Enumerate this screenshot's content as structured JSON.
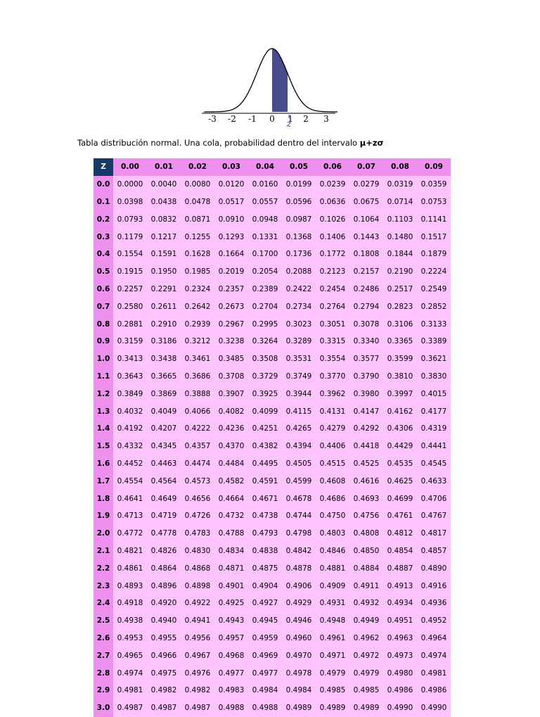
{
  "figure": {
    "ticks": [
      "-3",
      "-2",
      "-1",
      "0",
      "1",
      "2",
      "3"
    ],
    "z_marker": "z",
    "colors": {
      "curve": "#000000",
      "shaded_area": "#4a4b8c"
    }
  },
  "caption": {
    "text": "Tabla distribución normal. Una cola, probabilidad dentro del intervalo ",
    "formula": "μ+zσ"
  },
  "table": {
    "corner": "Z",
    "columns": [
      "0.00",
      "0.01",
      "0.02",
      "0.03",
      "0.04",
      "0.05",
      "0.06",
      "0.07",
      "0.08",
      "0.09"
    ],
    "rows": [
      {
        "z": "0.0",
        "values": [
          "0.0000",
          "0.0040",
          "0.0080",
          "0.0120",
          "0.0160",
          "0.0199",
          "0.0239",
          "0.0279",
          "0.0319",
          "0.0359"
        ]
      },
      {
        "z": "0.1",
        "values": [
          "0.0398",
          "0.0438",
          "0.0478",
          "0.0517",
          "0.0557",
          "0.0596",
          "0.0636",
          "0.0675",
          "0.0714",
          "0.0753"
        ]
      },
      {
        "z": "0.2",
        "values": [
          "0.0793",
          "0.0832",
          "0.0871",
          "0.0910",
          "0.0948",
          "0.0987",
          "0.1026",
          "0.1064",
          "0.1103",
          "0.1141"
        ]
      },
      {
        "z": "0.3",
        "values": [
          "0.1179",
          "0.1217",
          "0.1255",
          "0.1293",
          "0.1331",
          "0.1368",
          "0.1406",
          "0.1443",
          "0.1480",
          "0.1517"
        ]
      },
      {
        "z": "0.4",
        "values": [
          "0.1554",
          "0.1591",
          "0.1628",
          "0.1664",
          "0.1700",
          "0.1736",
          "0.1772",
          "0.1808",
          "0.1844",
          "0.1879"
        ]
      },
      {
        "z": "0.5",
        "values": [
          "0.1915",
          "0.1950",
          "0.1985",
          "0.2019",
          "0.2054",
          "0.2088",
          "0.2123",
          "0.2157",
          "0.2190",
          "0.2224"
        ]
      },
      {
        "z": "0.6",
        "values": [
          "0.2257",
          "0.2291",
          "0.2324",
          "0.2357",
          "0.2389",
          "0.2422",
          "0.2454",
          "0.2486",
          "0.2517",
          "0.2549"
        ]
      },
      {
        "z": "0.7",
        "values": [
          "0.2580",
          "0.2611",
          "0.2642",
          "0.2673",
          "0.2704",
          "0.2734",
          "0.2764",
          "0.2794",
          "0.2823",
          "0.2852"
        ]
      },
      {
        "z": "0.8",
        "values": [
          "0.2881",
          "0.2910",
          "0.2939",
          "0.2967",
          "0.2995",
          "0.3023",
          "0.3051",
          "0.3078",
          "0.3106",
          "0.3133"
        ]
      },
      {
        "z": "0.9",
        "values": [
          "0.3159",
          "0.3186",
          "0.3212",
          "0.3238",
          "0.3264",
          "0.3289",
          "0.3315",
          "0.3340",
          "0.3365",
          "0.3389"
        ]
      },
      {
        "z": "1.0",
        "values": [
          "0.3413",
          "0.3438",
          "0.3461",
          "0.3485",
          "0.3508",
          "0.3531",
          "0.3554",
          "0.3577",
          "0.3599",
          "0.3621"
        ]
      },
      {
        "z": "1.1",
        "values": [
          "0.3643",
          "0.3665",
          "0.3686",
          "0.3708",
          "0.3729",
          "0.3749",
          "0.3770",
          "0.3790",
          "0.3810",
          "0.3830"
        ]
      },
      {
        "z": "1.2",
        "values": [
          "0.3849",
          "0.3869",
          "0.3888",
          "0.3907",
          "0.3925",
          "0.3944",
          "0.3962",
          "0.3980",
          "0.3997",
          "0.4015"
        ]
      },
      {
        "z": "1.3",
        "values": [
          "0.4032",
          "0.4049",
          "0.4066",
          "0.4082",
          "0.4099",
          "0.4115",
          "0.4131",
          "0.4147",
          "0.4162",
          "0.4177"
        ]
      },
      {
        "z": "1.4",
        "values": [
          "0.4192",
          "0.4207",
          "0.4222",
          "0.4236",
          "0.4251",
          "0.4265",
          "0.4279",
          "0.4292",
          "0.4306",
          "0.4319"
        ]
      },
      {
        "z": "1.5",
        "values": [
          "0.4332",
          "0.4345",
          "0.4357",
          "0.4370",
          "0.4382",
          "0.4394",
          "0.4406",
          "0.4418",
          "0.4429",
          "0.4441"
        ]
      },
      {
        "z": "1.6",
        "values": [
          "0.4452",
          "0.4463",
          "0.4474",
          "0.4484",
          "0.4495",
          "0.4505",
          "0.4515",
          "0.4525",
          "0.4535",
          "0.4545"
        ]
      },
      {
        "z": "1.7",
        "values": [
          "0.4554",
          "0.4564",
          "0.4573",
          "0.4582",
          "0.4591",
          "0.4599",
          "0.4608",
          "0.4616",
          "0.4625",
          "0.4633"
        ]
      },
      {
        "z": "1.8",
        "values": [
          "0.4641",
          "0.4649",
          "0.4656",
          "0.4664",
          "0.4671",
          "0.4678",
          "0.4686",
          "0.4693",
          "0.4699",
          "0.4706"
        ]
      },
      {
        "z": "1.9",
        "values": [
          "0.4713",
          "0.4719",
          "0.4726",
          "0.4732",
          "0.4738",
          "0.4744",
          "0.4750",
          "0.4756",
          "0.4761",
          "0.4767"
        ]
      },
      {
        "z": "2.0",
        "values": [
          "0.4772",
          "0.4778",
          "0.4783",
          "0.4788",
          "0.4793",
          "0.4798",
          "0.4803",
          "0.4808",
          "0.4812",
          "0.4817"
        ]
      },
      {
        "z": "2.1",
        "values": [
          "0.4821",
          "0.4826",
          "0.4830",
          "0.4834",
          "0.4838",
          "0.4842",
          "0.4846",
          "0.4850",
          "0.4854",
          "0.4857"
        ]
      },
      {
        "z": "2.2",
        "values": [
          "0.4861",
          "0.4864",
          "0.4868",
          "0.4871",
          "0.4875",
          "0.4878",
          "0.4881",
          "0.4884",
          "0.4887",
          "0.4890"
        ]
      },
      {
        "z": "2.3",
        "values": [
          "0.4893",
          "0.4896",
          "0.4898",
          "0.4901",
          "0.4904",
          "0.4906",
          "0.4909",
          "0.4911",
          "0.4913",
          "0.4916"
        ]
      },
      {
        "z": "2.4",
        "values": [
          "0.4918",
          "0.4920",
          "0.4922",
          "0.4925",
          "0.4927",
          "0.4929",
          "0.4931",
          "0.4932",
          "0.4934",
          "0.4936"
        ]
      },
      {
        "z": "2.5",
        "values": [
          "0.4938",
          "0.4940",
          "0.4941",
          "0.4943",
          "0.4945",
          "0.4946",
          "0.4948",
          "0.4949",
          "0.4951",
          "0.4952"
        ]
      },
      {
        "z": "2.6",
        "values": [
          "0.4953",
          "0.4955",
          "0.4956",
          "0.4957",
          "0.4959",
          "0.4960",
          "0.4961",
          "0.4962",
          "0.4963",
          "0.4964"
        ]
      },
      {
        "z": "2.7",
        "values": [
          "0.4965",
          "0.4966",
          "0.4967",
          "0.4968",
          "0.4969",
          "0.4970",
          "0.4971",
          "0.4972",
          "0.4973",
          "0.4974"
        ]
      },
      {
        "z": "2.8",
        "values": [
          "0.4974",
          "0.4975",
          "0.4976",
          "0.4977",
          "0.4977",
          "0.4978",
          "0.4979",
          "0.4979",
          "0.4980",
          "0.4981"
        ]
      },
      {
        "z": "2.9",
        "values": [
          "0.4981",
          "0.4982",
          "0.4982",
          "0.4983",
          "0.4984",
          "0.4984",
          "0.4985",
          "0.4985",
          "0.4986",
          "0.4986"
        ]
      },
      {
        "z": "3.0",
        "values": [
          "0.4987",
          "0.4987",
          "0.4987",
          "0.4988",
          "0.4988",
          "0.4989",
          "0.4989",
          "0.4989",
          "0.4990",
          "0.4990"
        ]
      }
    ]
  }
}
